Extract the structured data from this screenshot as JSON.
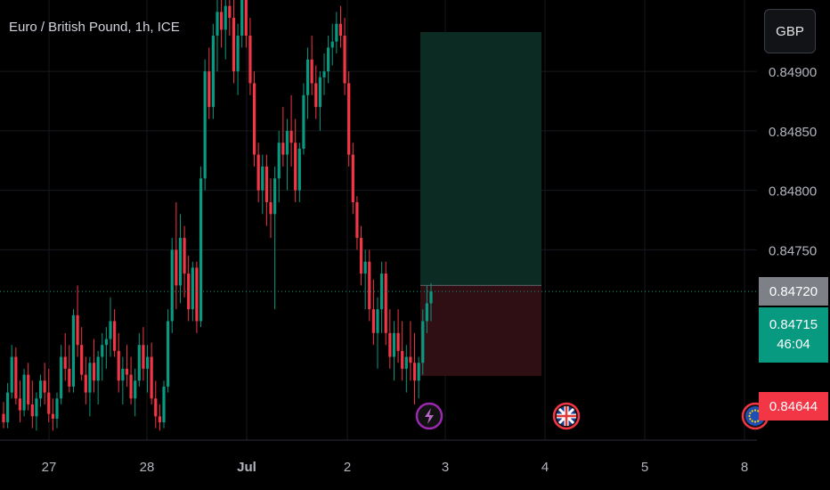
{
  "header": {
    "title": "Euro / British Pound, 1h, ICE",
    "currency_button": "GBP"
  },
  "price_tags": {
    "target_label": "0.84720",
    "last_price": "0.84715",
    "countdown": "46:04",
    "stop_label": "0.84644"
  },
  "colors": {
    "up": "#089981",
    "down": "#f23645",
    "profit_zone": "#0c2b23",
    "loss_zone": "#2f0f14",
    "background": "#000000"
  },
  "event_icons": [
    {
      "name": "lightning-icon",
      "glyph": "⚡",
      "color": "#9c27b0"
    },
    {
      "name": "uk-flag-icon",
      "glyph": "",
      "color": "#f23645"
    },
    {
      "name": "eu-flag-icon",
      "glyph": "",
      "color": "#f23645"
    }
  ],
  "chart_data": {
    "type": "candlestick",
    "title": "Euro / British Pound, 1h, ICE",
    "y_ticks": [
      "0.84900",
      "0.84850",
      "0.84800",
      "0.84750"
    ],
    "x_ticks": [
      "27",
      "28",
      "Jul",
      "2",
      "3",
      "4",
      "5",
      "8"
    ],
    "ylim": [
      0.8459,
      0.8496
    ],
    "grid": true,
    "last_price": 0.84715,
    "position": {
      "type": "long",
      "entry": 0.8472,
      "take_profit": 0.8496,
      "stop_loss": 0.84644
    },
    "candles_ohlc": [
      [
        0.84612,
        0.84622,
        0.846,
        0.84605
      ],
      [
        0.84605,
        0.84638,
        0.846,
        0.8463
      ],
      [
        0.8463,
        0.8467,
        0.84625,
        0.8466
      ],
      [
        0.8466,
        0.84668,
        0.8462,
        0.84625
      ],
      [
        0.84625,
        0.8464,
        0.84605,
        0.84615
      ],
      [
        0.84615,
        0.8465,
        0.8461,
        0.84645
      ],
      [
        0.84645,
        0.84655,
        0.84615,
        0.8462
      ],
      [
        0.8462,
        0.8464,
        0.846,
        0.8461
      ],
      [
        0.8461,
        0.8463,
        0.84598,
        0.84625
      ],
      [
        0.84625,
        0.84645,
        0.84618,
        0.8464
      ],
      [
        0.8464,
        0.84655,
        0.8462,
        0.8463
      ],
      [
        0.8463,
        0.8465,
        0.84605,
        0.84612
      ],
      [
        0.84612,
        0.84625,
        0.84598,
        0.84608
      ],
      [
        0.84608,
        0.8463,
        0.846,
        0.84625
      ],
      [
        0.84625,
        0.8467,
        0.8462,
        0.8466
      ],
      [
        0.8466,
        0.8468,
        0.8464,
        0.8465
      ],
      [
        0.8465,
        0.8467,
        0.8463,
        0.84635
      ],
      [
        0.84635,
        0.847,
        0.8463,
        0.84695
      ],
      [
        0.84695,
        0.8472,
        0.8466,
        0.8467
      ],
      [
        0.8467,
        0.84685,
        0.8464,
        0.84645
      ],
      [
        0.84645,
        0.8466,
        0.8462,
        0.8463
      ],
      [
        0.8463,
        0.8466,
        0.8461,
        0.84655
      ],
      [
        0.84655,
        0.84675,
        0.8463,
        0.8464
      ],
      [
        0.8464,
        0.84665,
        0.8462,
        0.8466
      ],
      [
        0.8466,
        0.8468,
        0.8464,
        0.8467
      ],
      [
        0.8467,
        0.84685,
        0.8465,
        0.84675
      ],
      [
        0.84675,
        0.8471,
        0.8466,
        0.8469
      ],
      [
        0.8469,
        0.847,
        0.8466,
        0.84665
      ],
      [
        0.84665,
        0.8468,
        0.8463,
        0.8464
      ],
      [
        0.8464,
        0.8466,
        0.8462,
        0.8465
      ],
      [
        0.8465,
        0.8467,
        0.84635,
        0.84645
      ],
      [
        0.84645,
        0.8466,
        0.8462,
        0.84625
      ],
      [
        0.84625,
        0.8465,
        0.8461,
        0.8464
      ],
      [
        0.8464,
        0.8468,
        0.84635,
        0.8467
      ],
      [
        0.8467,
        0.84685,
        0.8464,
        0.8465
      ],
      [
        0.8465,
        0.8467,
        0.8463,
        0.8466
      ],
      [
        0.8466,
        0.84672,
        0.8462,
        0.84625
      ],
      [
        0.84625,
        0.8464,
        0.846,
        0.8461
      ],
      [
        0.8461,
        0.8462,
        0.84598,
        0.84605
      ],
      [
        0.84605,
        0.8464,
        0.846,
        0.84635
      ],
      [
        0.84635,
        0.847,
        0.8463,
        0.8469
      ],
      [
        0.8469,
        0.8476,
        0.8468,
        0.8475
      ],
      [
        0.8475,
        0.8479,
        0.847,
        0.8472
      ],
      [
        0.8472,
        0.8478,
        0.84705,
        0.8476
      ],
      [
        0.8476,
        0.8477,
        0.8471,
        0.8473
      ],
      [
        0.8473,
        0.84745,
        0.8469,
        0.847
      ],
      [
        0.847,
        0.8474,
        0.8469,
        0.84735
      ],
      [
        0.84735,
        0.8474,
        0.8468,
        0.8469
      ],
      [
        0.8469,
        0.8482,
        0.84685,
        0.8481
      ],
      [
        0.8481,
        0.8491,
        0.848,
        0.849
      ],
      [
        0.849,
        0.8492,
        0.8486,
        0.8487
      ],
      [
        0.8487,
        0.8494,
        0.8486,
        0.8493
      ],
      [
        0.8493,
        0.8496,
        0.849,
        0.8495
      ],
      [
        0.8495,
        0.8497,
        0.8492,
        0.84935
      ],
      [
        0.84935,
        0.8496,
        0.8491,
        0.84955
      ],
      [
        0.84955,
        0.8498,
        0.8493,
        0.84945
      ],
      [
        0.84945,
        0.8496,
        0.8489,
        0.849
      ],
      [
        0.849,
        0.8494,
        0.8488,
        0.8493
      ],
      [
        0.8493,
        0.84975,
        0.8492,
        0.84965
      ],
      [
        0.84965,
        0.8497,
        0.8492,
        0.8493
      ],
      [
        0.8493,
        0.84945,
        0.8488,
        0.8489
      ],
      [
        0.8489,
        0.849,
        0.8482,
        0.8483
      ],
      [
        0.8483,
        0.8484,
        0.8479,
        0.848
      ],
      [
        0.848,
        0.8483,
        0.8478,
        0.8482
      ],
      [
        0.8482,
        0.8483,
        0.8477,
        0.8479
      ],
      [
        0.8479,
        0.8481,
        0.8476,
        0.8478
      ],
      [
        0.8478,
        0.8482,
        0.847,
        0.8481
      ],
      [
        0.8481,
        0.8485,
        0.8479,
        0.8484
      ],
      [
        0.8484,
        0.8487,
        0.8482,
        0.8483
      ],
      [
        0.8483,
        0.8486,
        0.848,
        0.8485
      ],
      [
        0.8485,
        0.8488,
        0.8482,
        0.8484
      ],
      [
        0.8484,
        0.8486,
        0.8479,
        0.848
      ],
      [
        0.848,
        0.8484,
        0.8479,
        0.84835
      ],
      [
        0.84835,
        0.8489,
        0.8483,
        0.8488
      ],
      [
        0.8488,
        0.8492,
        0.8486,
        0.8491
      ],
      [
        0.8491,
        0.8493,
        0.8488,
        0.8489
      ],
      [
        0.8489,
        0.84905,
        0.8486,
        0.8487
      ],
      [
        0.8487,
        0.849,
        0.8485,
        0.84895
      ],
      [
        0.84895,
        0.84915,
        0.8488,
        0.849
      ],
      [
        0.849,
        0.8493,
        0.8489,
        0.8492
      ],
      [
        0.8492,
        0.8494,
        0.84905,
        0.84925
      ],
      [
        0.84925,
        0.8495,
        0.84915,
        0.8494
      ],
      [
        0.8494,
        0.84955,
        0.8492,
        0.8493
      ],
      [
        0.8493,
        0.84945,
        0.8488,
        0.8489
      ],
      [
        0.8489,
        0.849,
        0.8482,
        0.8483
      ],
      [
        0.8483,
        0.8484,
        0.8478,
        0.8479
      ],
      [
        0.8479,
        0.84795,
        0.8475,
        0.8476
      ],
      [
        0.8476,
        0.8477,
        0.8472,
        0.8473
      ],
      [
        0.8473,
        0.8475,
        0.847,
        0.8474
      ],
      [
        0.8474,
        0.8475,
        0.8469,
        0.847
      ],
      [
        0.847,
        0.84725,
        0.8467,
        0.8468
      ],
      [
        0.8468,
        0.8471,
        0.8465,
        0.847
      ],
      [
        0.847,
        0.8474,
        0.8468,
        0.8473
      ],
      [
        0.8473,
        0.8474,
        0.8467,
        0.8468
      ],
      [
        0.8468,
        0.847,
        0.8465,
        0.8466
      ],
      [
        0.8466,
        0.8469,
        0.8464,
        0.8468
      ],
      [
        0.8468,
        0.847,
        0.84655,
        0.84665
      ],
      [
        0.84665,
        0.8469,
        0.8464,
        0.8465
      ],
      [
        0.8465,
        0.8467,
        0.8463,
        0.8466
      ],
      [
        0.8466,
        0.8469,
        0.8464,
        0.84655
      ],
      [
        0.84655,
        0.8468,
        0.8462,
        0.8464
      ],
      [
        0.8464,
        0.8466,
        0.84625,
        0.84655
      ],
      [
        0.84655,
        0.847,
        0.84645,
        0.8469
      ],
      [
        0.8469,
        0.8472,
        0.8468,
        0.84705
      ],
      [
        0.84705,
        0.84722,
        0.8469,
        0.84715
      ]
    ]
  }
}
